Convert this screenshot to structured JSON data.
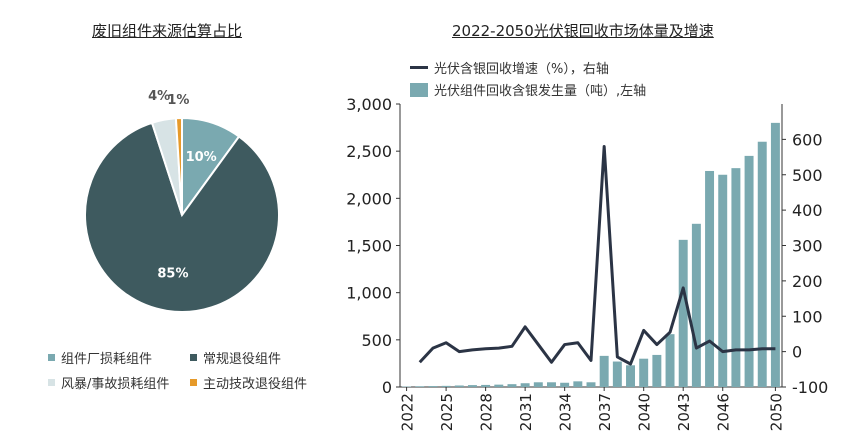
{
  "chart_data": [
    {
      "type": "pie",
      "title": "废旧组件来源估算占比",
      "labels": [
        "组件厂损耗组件",
        "常规退役组件",
        "风暴/事故损耗组件",
        "主动技改退役组件"
      ],
      "values": [
        10,
        85,
        4,
        1
      ],
      "value_labels": [
        "10%",
        "85%",
        "4%",
        "1%"
      ],
      "colors": [
        "#7aa9b0",
        "#3e5a5f",
        "#d7e3e5",
        "#e69a2a"
      ],
      "legend_position": "bottom"
    },
    {
      "type": "bar+line",
      "title": "2022-2050光伏银回收市场体量及增速",
      "x": [
        2022,
        2023,
        2024,
        2025,
        2026,
        2027,
        2028,
        2029,
        2030,
        2031,
        2032,
        2033,
        2034,
        2035,
        2036,
        2037,
        2038,
        2039,
        2040,
        2041,
        2042,
        2043,
        2044,
        2045,
        2046,
        2047,
        2048,
        2049,
        2050
      ],
      "x_tick_labels": [
        "2022",
        "2025",
        "2028",
        "2031",
        "2034",
        "2037",
        "2040",
        "2043",
        "2046",
        "2050"
      ],
      "series": [
        {
          "name": "光伏组件回收含银发生量（吨）,左轴",
          "type": "bar",
          "axis": "left",
          "color": "#7aa9b0",
          "values": [
            5,
            8,
            10,
            12,
            16,
            20,
            22,
            25,
            30,
            40,
            50,
            50,
            45,
            60,
            50,
            330,
            270,
            230,
            300,
            340,
            560,
            1560,
            1730,
            2290,
            2250,
            2320,
            2450,
            2600,
            2800
          ]
        },
        {
          "name": "光伏含银回收增速（%），右轴",
          "type": "line",
          "axis": "right",
          "color": "#2b3445",
          "values": [
            null,
            -30,
            10,
            25,
            0,
            5,
            8,
            10,
            15,
            70,
            20,
            -30,
            20,
            25,
            -25,
            580,
            -15,
            -35,
            60,
            20,
            55,
            180,
            10,
            30,
            0,
            5,
            5,
            8,
            8
          ]
        }
      ],
      "y_left": {
        "lim": [
          0,
          3000
        ],
        "ticks": [
          "0",
          "500",
          "1,000",
          "1,500",
          "2,000",
          "2,500",
          "3,000"
        ]
      },
      "y_right": {
        "lim": [
          -100,
          700
        ],
        "ticks": [
          "-100",
          "0",
          "100",
          "200",
          "300",
          "400",
          "500",
          "600"
        ]
      },
      "grid": false,
      "legend_position": "top"
    }
  ]
}
